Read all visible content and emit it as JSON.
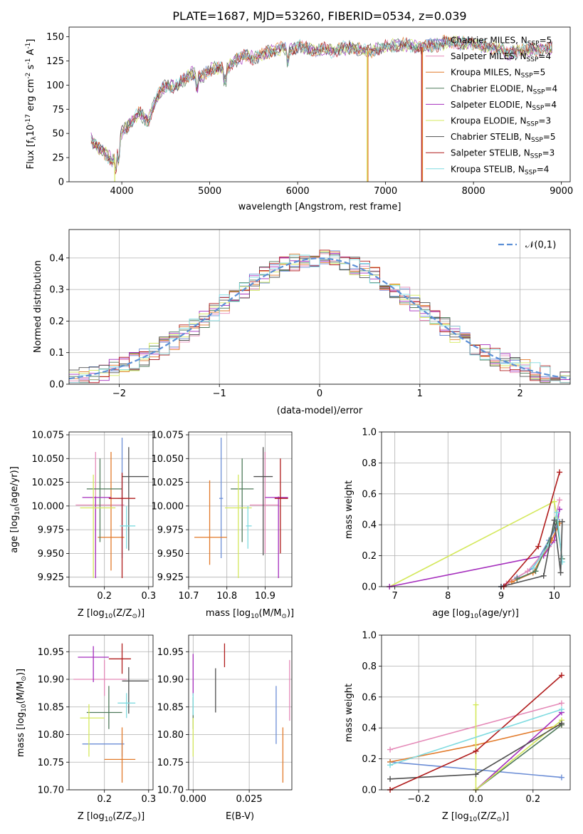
{
  "chart_data": [
    {
      "id": "spectrum",
      "type": "line",
      "title": "PLATE=1687, MJD=53260, FIBERID=0534, z=0.039",
      "xlabel": "wavelength [Angstrom, rest frame]",
      "ylabel": "Flux [f$_\\lambda$10$^{-17}$ erg cm$^{-2}$ s$^{-1}$ A$^{-1}$]",
      "xlim": [
        3400,
        9100
      ],
      "ylim": [
        0,
        160
      ],
      "xticks": [
        4000,
        5000,
        6000,
        7000,
        8000,
        9000
      ],
      "yticks": [
        0,
        25,
        50,
        75,
        100,
        125,
        150
      ],
      "grid": false,
      "legend_position": "top-right",
      "series": [
        {
          "name": "Chabrier MILES, N$_{SSP}$=5",
          "color": "#6c8ed6"
        },
        {
          "name": "Salpeter MILES, N$_{SSP}$=4",
          "color": "#e58ab8"
        },
        {
          "name": "Kroupa MILES, N$_{SSP}$=5",
          "color": "#e27a2a"
        },
        {
          "name": "Chabrier ELODIE, N$_{SSP}$=4",
          "color": "#4f7a5a"
        },
        {
          "name": "Salpeter ELODIE, N$_{SSP}$=4",
          "color": "#a52ebd"
        },
        {
          "name": "Kroupa ELODIE, N$_{SSP}$=3",
          "color": "#d4e85c"
        },
        {
          "name": "Chabrier STELIB, N$_{SSP}$=5",
          "color": "#505050"
        },
        {
          "name": "Salpeter STELIB, N$_{SSP}$=3",
          "color": "#b01c1c"
        },
        {
          "name": "Kroupa STELIB, N$_{SSP}$=4",
          "color": "#7fdbe0"
        }
      ],
      "x": [
        3650,
        3700,
        3750,
        3800,
        3850,
        3900,
        3950,
        4000,
        4100,
        4200,
        4300,
        4400,
        4500,
        4600,
        4700,
        4800,
        4900,
        5000,
        5100,
        5200,
        5300,
        5400,
        5500,
        5600,
        5700,
        5800,
        5900,
        6000,
        6100,
        6200,
        6300,
        6400,
        6500,
        6600,
        6700,
        6800,
        6900,
        7000,
        7100,
        7200,
        7300,
        7400,
        7500,
        7600,
        7700,
        7800,
        7900,
        8000,
        8100,
        8200,
        8300,
        8400,
        8500,
        8600,
        8700,
        8800,
        8900
      ],
      "flux": [
        45,
        38,
        33,
        30,
        26,
        22,
        30,
        52,
        60,
        72,
        62,
        88,
        100,
        98,
        105,
        112,
        108,
        116,
        118,
        117,
        126,
        130,
        128,
        132,
        135,
        138,
        136,
        140,
        138,
        136,
        137,
        135,
        138,
        139,
        137,
        135,
        136,
        140,
        141,
        142,
        140,
        139,
        141,
        142,
        145,
        144,
        143,
        143,
        140,
        138,
        138,
        132,
        135,
        137,
        137,
        136,
        138
      ],
      "dropouts": [
        {
          "series": "Kroupa ELODIE, N$_{SSP}$=3",
          "x": [
            3920,
            3920
          ]
        },
        {
          "series": "Kroupa ELODIE, N$_{SSP}$=3",
          "x": [
            6790,
            6790
          ]
        },
        {
          "series": "Kroupa MILES, N$_{SSP}$=5",
          "x": [
            6800,
            6800
          ]
        },
        {
          "series": "Kroupa MILES, N$_{SSP}$=5",
          "x": [
            7420,
            7420
          ]
        },
        {
          "series": "Salpeter STELIB, N$_{SSP}$=3",
          "x": [
            7410,
            7410
          ]
        }
      ]
    },
    {
      "id": "residuals",
      "type": "line",
      "xlabel": "(data-model)/error",
      "ylabel": "Normed distribution",
      "xlim": [
        -2.5,
        2.5
      ],
      "ylim": [
        0,
        0.49
      ],
      "xticks": [
        -2,
        -1,
        0,
        1,
        2
      ],
      "yticks": [
        0.0,
        0.1,
        0.2,
        0.3,
        0.4
      ],
      "grid": true,
      "legend_position": "top-right",
      "legend": [
        "$\\mathcal{N}(0,1)$"
      ],
      "bins": {
        "start": -2.5,
        "width": 0.1,
        "count": 50
      }
    },
    {
      "id": "age-vs-Z",
      "type": "scatter",
      "xlabel": "Z [log$_{10}$(Z/Z$_\\odot$)]",
      "ylabel": "age  [log$_{10}$(age/yr)]",
      "xlim": [
        0.12,
        0.31
      ],
      "ylim": [
        9.915,
        10.078
      ],
      "xticks": [
        0.2,
        0.3
      ],
      "yticks": [
        9.925,
        9.95,
        9.975,
        10.0,
        10.025,
        10.05,
        10.075
      ],
      "grid": true,
      "points": [
        {
          "color": "#6c8ed6",
          "x": 0.24,
          "y": 10.008,
          "xerr": [
            0.23,
            0.25
          ],
          "yerr": [
            9.945,
            10.072
          ]
        },
        {
          "color": "#e58ab8",
          "x": 0.18,
          "y": 10.001,
          "xerr": [
            0.135,
            0.245
          ],
          "yerr": [
            9.95,
            10.057
          ]
        },
        {
          "color": "#e27a2a",
          "x": 0.215,
          "y": 9.967,
          "xerr": [
            0.185,
            0.245
          ],
          "yerr": [
            9.932,
            10.057
          ]
        },
        {
          "color": "#4f7a5a",
          "x": 0.19,
          "y": 10.018,
          "xerr": [
            0.16,
            0.24
          ],
          "yerr": [
            9.962,
            10.05
          ]
        },
        {
          "color": "#a52ebd",
          "x": 0.18,
          "y": 10.009,
          "xerr": [
            0.15,
            0.215
          ],
          "yerr": [
            9.924,
            10.01
          ]
        },
        {
          "color": "#d4e85c",
          "x": 0.175,
          "y": 9.998,
          "xerr": [
            0.145,
            0.225
          ],
          "yerr": [
            9.924,
            10.033
          ]
        },
        {
          "color": "#505050",
          "x": 0.255,
          "y": 10.031,
          "xerr": [
            0.24,
            0.3
          ],
          "yerr": [
            9.953,
            10.062
          ]
        },
        {
          "color": "#b01c1c",
          "x": 0.24,
          "y": 10.008,
          "xerr": [
            0.21,
            0.27
          ],
          "yerr": [
            9.924,
            10.035
          ]
        },
        {
          "color": "#7fdbe0",
          "x": 0.25,
          "y": 9.979,
          "xerr": [
            0.235,
            0.27
          ],
          "yerr": [
            9.955,
            10.0
          ]
        }
      ]
    },
    {
      "id": "age-vs-mass",
      "type": "scatter",
      "xlabel": "mass [log$_{10}$(M/M$_\\odot$)]",
      "ylabel": "",
      "xlim": [
        10.7,
        10.97
      ],
      "ylim": [
        9.915,
        10.078
      ],
      "xticks": [
        10.7,
        10.8,
        10.9
      ],
      "yticks": [
        9.925,
        9.95,
        9.975,
        10.0,
        10.025,
        10.05,
        10.075
      ],
      "grid": true,
      "points": [
        {
          "color": "#6c8ed6",
          "x": 10.785,
          "y": 10.008,
          "xerr": [
            10.78,
            10.79
          ],
          "yerr": [
            9.945,
            10.072
          ]
        },
        {
          "color": "#e58ab8",
          "x": 10.9,
          "y": 10.001,
          "xerr": [
            10.86,
            10.935
          ],
          "yerr": [
            9.95,
            10.057
          ]
        },
        {
          "color": "#e27a2a",
          "x": 10.755,
          "y": 9.967,
          "xerr": [
            10.715,
            10.8
          ],
          "yerr": [
            9.938,
            10.027
          ]
        },
        {
          "color": "#4f7a5a",
          "x": 10.84,
          "y": 10.018,
          "xerr": [
            10.81,
            10.87
          ],
          "yerr": [
            9.962,
            10.05
          ]
        },
        {
          "color": "#a52ebd",
          "x": 10.935,
          "y": 10.009,
          "xerr": [
            10.9,
            10.96
          ],
          "yerr": [
            9.924,
            10.01
          ]
        },
        {
          "color": "#d4e85c",
          "x": 10.83,
          "y": 9.998,
          "xerr": [
            10.795,
            10.865
          ],
          "yerr": [
            9.924,
            10.033
          ]
        },
        {
          "color": "#505050",
          "x": 10.895,
          "y": 10.031,
          "xerr": [
            10.87,
            10.92
          ],
          "yerr": [
            9.948,
            10.062
          ]
        },
        {
          "color": "#b01c1c",
          "x": 10.94,
          "y": 10.008,
          "xerr": [
            10.925,
            10.96
          ],
          "yerr": [
            9.95,
            10.05
          ]
        },
        {
          "color": "#7fdbe0",
          "x": 10.855,
          "y": 9.979,
          "xerr": [
            10.85,
            10.865
          ],
          "yerr": [
            9.955,
            10.0
          ]
        }
      ]
    },
    {
      "id": "mass-weight-vs-age",
      "type": "line",
      "xlabel": "age  [log$_{10}$(age/yr)]",
      "ylabel": "mass weight",
      "xlim": [
        6.75,
        10.3
      ],
      "ylim": [
        0,
        1.0
      ],
      "xticks": [
        7,
        8,
        9,
        10
      ],
      "yticks": [
        0.0,
        0.2,
        0.4,
        0.6,
        0.8,
        1.0
      ],
      "grid": true,
      "series": [
        {
          "color": "#d4e85c",
          "x": [
            6.9,
            10.0,
            10.05
          ],
          "y": [
            0.0,
            0.55,
            0.45
          ]
        },
        {
          "color": "#a52ebd",
          "x": [
            6.9,
            9.8,
            10.0,
            10.1
          ],
          "y": [
            0.0,
            0.2,
            0.3,
            0.5
          ]
        },
        {
          "color": "#6c8ed6",
          "x": [
            9.0,
            9.3,
            9.6,
            9.9,
            10.1
          ],
          "y": [
            0.0,
            0.06,
            0.12,
            0.3,
            0.42
          ]
        },
        {
          "color": "#e58ab8",
          "x": [
            9.1,
            9.5,
            9.9,
            10.1
          ],
          "y": [
            0.02,
            0.1,
            0.26,
            0.56
          ]
        },
        {
          "color": "#e27a2a",
          "x": [
            9.2,
            9.6,
            9.95,
            10.1
          ],
          "y": [
            0.03,
            0.09,
            0.3,
            0.41
          ]
        },
        {
          "color": "#4f7a5a",
          "x": [
            9.3,
            9.65,
            10.05,
            10.15
          ],
          "y": [
            0.05,
            0.1,
            0.42,
            0.18
          ]
        },
        {
          "color": "#7fdbe0",
          "x": [
            9.6,
            9.9,
            10.05,
            10.15
          ],
          "y": [
            0.12,
            0.27,
            0.48,
            0.16
          ]
        },
        {
          "color": "#505050",
          "x": [
            9.0,
            9.8,
            10.0,
            10.12,
            10.15
          ],
          "y": [
            0.0,
            0.07,
            0.43,
            0.09,
            0.42
          ]
        },
        {
          "color": "#b01c1c",
          "x": [
            9.05,
            9.7,
            10.1
          ],
          "y": [
            0.0,
            0.26,
            0.74
          ]
        }
      ]
    },
    {
      "id": "mass-vs-Z",
      "type": "scatter",
      "xlabel": "Z [log$_{10}$(Z/Z$_\\odot$)]",
      "ylabel": "mass [log$_{10}$(M/M$_\\odot$)]",
      "xlim": [
        0.12,
        0.31
      ],
      "ylim": [
        10.7,
        10.98
      ],
      "xticks": [
        0.2,
        0.3
      ],
      "yticks": [
        10.7,
        10.75,
        10.8,
        10.85,
        10.9,
        10.95
      ],
      "grid": true,
      "points": [
        {
          "color": "#6c8ed6",
          "x": 0.24,
          "y": 10.783,
          "xerr": [
            0.15,
            0.245
          ],
          "yerr": [
            10.76,
            10.79
          ]
        },
        {
          "color": "#e58ab8",
          "x": 0.2,
          "y": 10.9,
          "xerr": [
            0.13,
            0.25
          ],
          "yerr": [
            10.87,
            10.935
          ]
        },
        {
          "color": "#e27a2a",
          "x": 0.24,
          "y": 10.755,
          "xerr": [
            0.2,
            0.27
          ],
          "yerr": [
            10.713,
            10.813
          ]
        },
        {
          "color": "#4f7a5a",
          "x": 0.21,
          "y": 10.84,
          "xerr": [
            0.16,
            0.24
          ],
          "yerr": [
            10.81,
            10.888
          ]
        },
        {
          "color": "#a52ebd",
          "x": 0.175,
          "y": 10.94,
          "xerr": [
            0.14,
            0.21
          ],
          "yerr": [
            10.895,
            10.96
          ]
        },
        {
          "color": "#d4e85c",
          "x": 0.165,
          "y": 10.83,
          "xerr": [
            0.145,
            0.2
          ],
          "yerr": [
            10.76,
            10.855
          ]
        },
        {
          "color": "#505050",
          "x": 0.255,
          "y": 10.897,
          "xerr": [
            0.24,
            0.3
          ],
          "yerr": [
            10.838,
            10.922
          ]
        },
        {
          "color": "#b01c1c",
          "x": 0.24,
          "y": 10.937,
          "xerr": [
            0.21,
            0.26
          ],
          "yerr": [
            10.91,
            10.965
          ]
        },
        {
          "color": "#7fdbe0",
          "x": 0.25,
          "y": 10.857,
          "xerr": [
            0.23,
            0.27
          ],
          "yerr": [
            10.83,
            10.875
          ]
        }
      ]
    },
    {
      "id": "E(B-V)",
      "type": "scatter",
      "xlabel": "E(B-V)",
      "ylabel": "",
      "xlim": [
        -0.002,
        0.044
      ],
      "ylim": [
        10.7,
        10.98
      ],
      "xticks": [
        0.0,
        0.025
      ],
      "yticks": [
        10.7,
        10.75,
        10.8,
        10.85,
        10.9,
        10.95
      ],
      "grid": true,
      "points": [
        {
          "color": "#6c8ed6",
          "x": 0.037,
          "y": 10.83,
          "yerr": [
            10.783,
            10.888
          ]
        },
        {
          "color": "#e58ab8",
          "x": 0.043,
          "y": 10.88,
          "yerr": [
            10.825,
            10.935
          ]
        },
        {
          "color": "#e27a2a",
          "x": 0.04,
          "y": 10.76,
          "yerr": [
            10.713,
            10.813
          ]
        },
        {
          "color": "#4f7a5a",
          "x": 0.0,
          "y": 10.84,
          "yerr": [
            10.81,
            10.868
          ]
        },
        {
          "color": "#a52ebd",
          "x": 0.0,
          "y": 10.91,
          "yerr": [
            10.87,
            10.946
          ]
        },
        {
          "color": "#d4e85c",
          "x": 0.0,
          "y": 10.79,
          "yerr": [
            10.76,
            10.83
          ]
        },
        {
          "color": "#505050",
          "x": 0.01,
          "y": 10.88,
          "yerr": [
            10.84,
            10.92
          ]
        },
        {
          "color": "#b01c1c",
          "x": 0.014,
          "y": 10.94,
          "yerr": [
            10.922,
            10.965
          ]
        },
        {
          "color": "#7fdbe0",
          "x": 0.0,
          "y": 10.86,
          "yerr": [
            10.835,
            10.875
          ]
        }
      ]
    },
    {
      "id": "mass-weight-vs-Z",
      "type": "line",
      "xlabel": "Z [log$_{10}$(Z/Z$_\\odot$)]",
      "ylabel": "mass weight",
      "xlim": [
        -0.33,
        0.33
      ],
      "ylim": [
        0,
        1.0
      ],
      "xticks": [
        -0.2,
        0.0,
        0.2
      ],
      "yticks": [
        0.0,
        0.2,
        0.4,
        0.6,
        0.8,
        1.0
      ],
      "grid": true,
      "series": [
        {
          "color": "#6c8ed6",
          "x": [
            -0.3,
            0.3
          ],
          "y": [
            0.18,
            0.08
          ]
        },
        {
          "color": "#e58ab8",
          "x": [
            -0.3,
            0.3
          ],
          "y": [
            0.26,
            0.56
          ]
        },
        {
          "color": "#e27a2a",
          "x": [
            -0.3,
            0.0,
            0.3
          ],
          "y": [
            0.18,
            0.29,
            0.42
          ]
        },
        {
          "color": "#4f7a5a",
          "x": [
            0.0,
            0.3
          ],
          "y": [
            0.0,
            0.42
          ]
        },
        {
          "color": "#a52ebd",
          "x": [
            0.0,
            0.3
          ],
          "y": [
            0.0,
            0.5
          ]
        },
        {
          "color": "#d4e85c",
          "x": [
            0.0,
            0.0,
            0.3
          ],
          "y": [
            0.55,
            0.0,
            0.45
          ]
        },
        {
          "color": "#505050",
          "x": [
            -0.3,
            0.0,
            0.3
          ],
          "y": [
            0.07,
            0.1,
            0.43
          ]
        },
        {
          "color": "#b01c1c",
          "x": [
            -0.3,
            0.0,
            0.3
          ],
          "y": [
            0.0,
            0.25,
            0.74
          ]
        },
        {
          "color": "#7fdbe0",
          "x": [
            -0.3,
            0.3
          ],
          "y": [
            0.16,
            0.52
          ]
        }
      ]
    }
  ]
}
